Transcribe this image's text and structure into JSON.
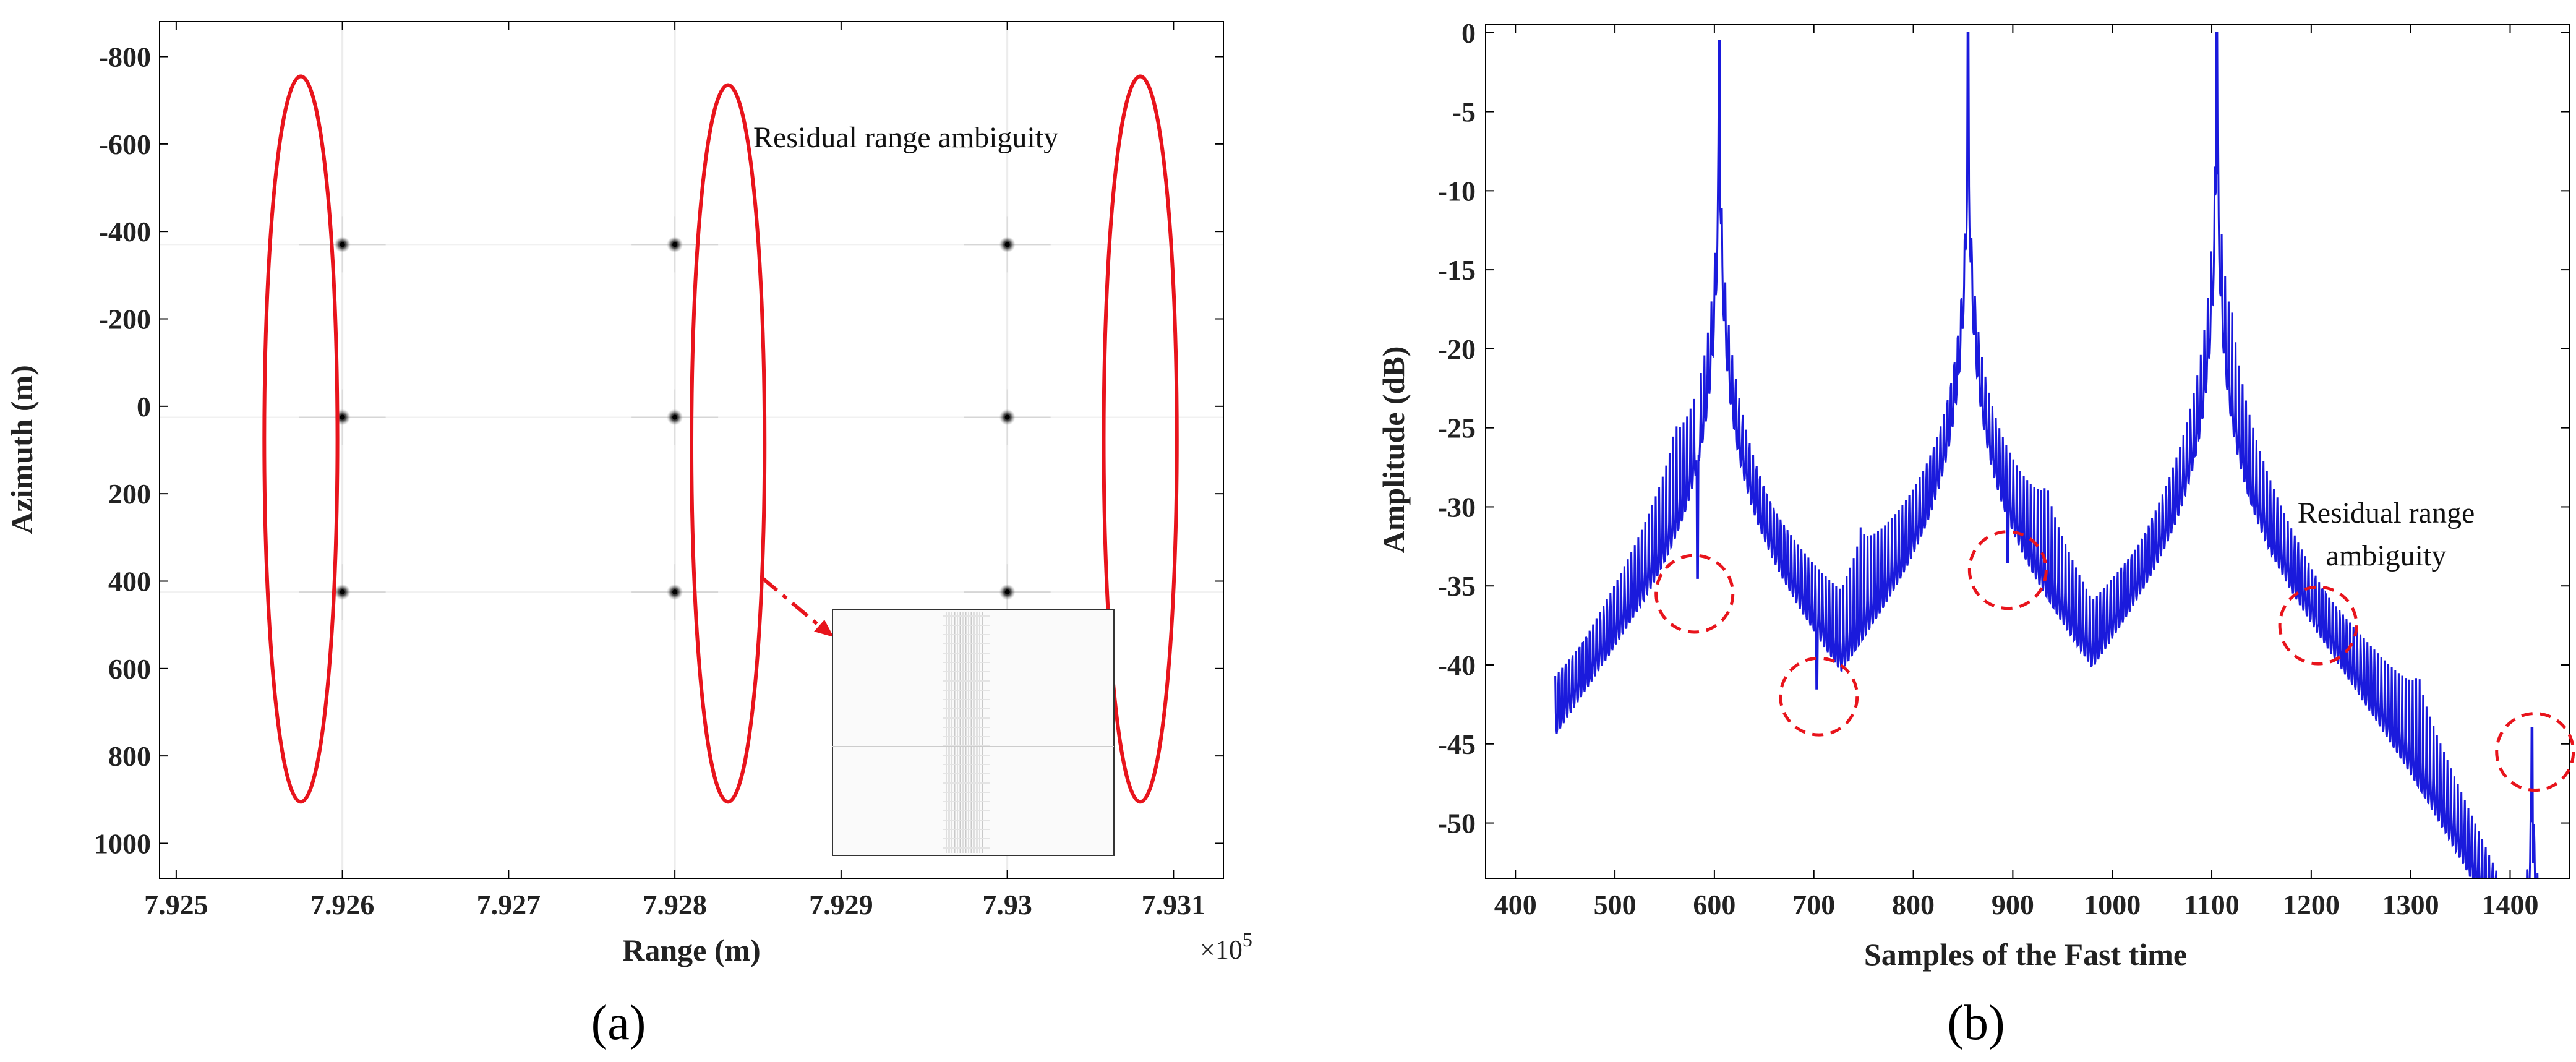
{
  "chart_data": [
    {
      "type": "scatter",
      "panel_label": "(a)",
      "xlabel": "Range (m)",
      "ylabel": "Azimuth (m)",
      "x_tick_labels": [
        "7.925",
        "7.926",
        "7.927",
        "7.928",
        "7.929",
        "7.93",
        "7.931"
      ],
      "x_ticks": [
        7.925,
        7.926,
        7.927,
        7.928,
        7.929,
        7.93,
        7.931
      ],
      "x_multiplier": "×10",
      "x_multiplier_exp": "5",
      "xlim": [
        7.9249,
        7.9313
      ],
      "y_tick_labels": [
        "-800",
        "-600",
        "-400",
        "-200",
        "0",
        "200",
        "400",
        "600",
        "800",
        "1000"
      ],
      "y_ticks": [
        -800,
        -600,
        -400,
        -200,
        0,
        200,
        400,
        600,
        800,
        1000
      ],
      "ylim": [
        -880,
        1080
      ],
      "y_reversed": true,
      "point_targets": [
        {
          "x": 7.926,
          "y": -370
        },
        {
          "x": 7.926,
          "y": 25
        },
        {
          "x": 7.926,
          "y": 425
        },
        {
          "x": 7.928,
          "y": -370
        },
        {
          "x": 7.928,
          "y": 25
        },
        {
          "x": 7.928,
          "y": 425
        },
        {
          "x": 7.93,
          "y": -370
        },
        {
          "x": 7.93,
          "y": 25
        },
        {
          "x": 7.93,
          "y": 425
        }
      ],
      "highlight_ellipses": [
        {
          "cx": 7.92575,
          "cy": 75,
          "rx": 0.00022,
          "ry": 830
        },
        {
          "cx": 7.92832,
          "cy": 85,
          "rx": 0.00022,
          "ry": 820
        },
        {
          "cx": 7.9308,
          "cy": 75,
          "rx": 0.00022,
          "ry": 830
        }
      ],
      "annotation": "Residual range ambiguity",
      "highlight_color": "#e8141c"
    },
    {
      "type": "line",
      "panel_label": "(b)",
      "xlabel": "Samples of the Fast time",
      "ylabel": "Amplitude (dB)",
      "x_ticks": [
        400,
        500,
        600,
        700,
        800,
        900,
        1000,
        1100,
        1200,
        1300,
        1400
      ],
      "xlim": [
        370,
        1460
      ],
      "y_ticks": [
        0,
        -5,
        -10,
        -15,
        -20,
        -25,
        -30,
        -35,
        -40,
        -45,
        -50
      ],
      "ylim": [
        -53.5,
        0.5
      ],
      "peaks": [
        {
          "x": 605,
          "value": -0.5
        },
        {
          "x": 855,
          "value": 0
        },
        {
          "x": 1105,
          "value": 0
        }
      ],
      "spurs": [
        {
          "x": 583,
          "value": -34.5
        },
        {
          "x": 703,
          "value": -41.5
        },
        {
          "x": 895,
          "value": -33.5
        },
        {
          "x": 1207,
          "value": -37.5
        },
        {
          "x": 1422,
          "value": -44
        }
      ],
      "circled_regions": [
        {
          "x": 580,
          "y": -35.5
        },
        {
          "x": 705,
          "y": -42
        },
        {
          "x": 895,
          "y": -34
        },
        {
          "x": 1207,
          "y": -37.5
        },
        {
          "x": 1425,
          "y": -45.5
        }
      ],
      "annotation_line1": "Residual range",
      "annotation_line2": "ambiguity",
      "series_color": "#1a1adc",
      "highlight_color": "#e8141c"
    }
  ]
}
